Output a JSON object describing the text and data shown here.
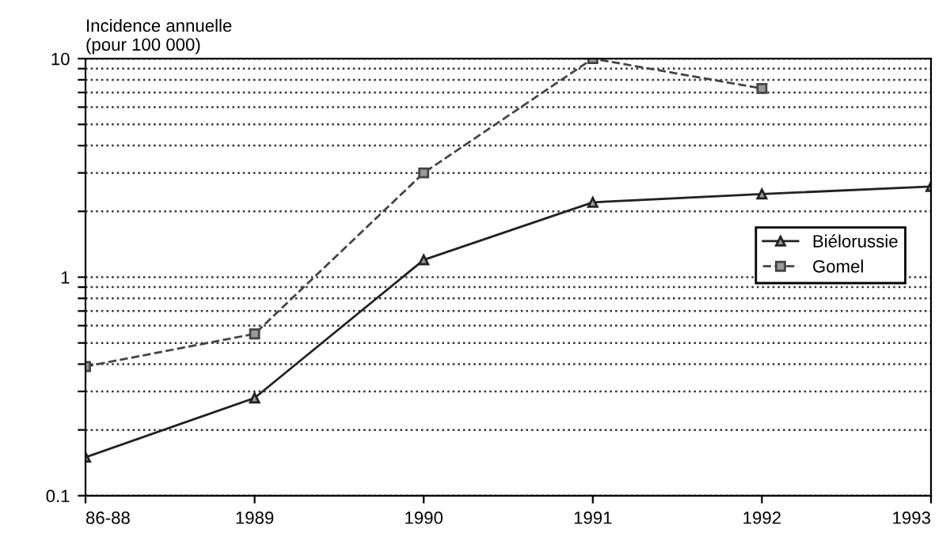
{
  "chart_data": {
    "type": "line",
    "ylabel": "Incidence annuelle\n(pour 100 000)",
    "categories": [
      "86-88",
      "1989",
      "1990",
      "1991",
      "1992",
      "1993"
    ],
    "series": [
      {
        "name": "Biélorussie",
        "color": "#222222",
        "marker": "triangle",
        "line_style": "solid",
        "values": [
          0.15,
          0.28,
          1.2,
          2.2,
          2.4,
          2.6
        ]
      },
      {
        "name": "Gomel",
        "color": "#444444",
        "marker": "square",
        "line_style": "dashed",
        "values": [
          0.39,
          0.55,
          3.0,
          10,
          7.3,
          null
        ]
      }
    ],
    "log": true,
    "ylim": [
      0.1,
      10
    ],
    "yticks": [
      0.1,
      {
        "value": 0.2,
        "label": null
      },
      {
        "value": 0.3,
        "label": null
      },
      {
        "value": 0.4,
        "label": null
      },
      {
        "value": 0.5,
        "label": null
      },
      {
        "value": 0.6,
        "label": null
      },
      {
        "value": 0.7,
        "label": null
      },
      {
        "value": 0.8,
        "label": null
      },
      {
        "value": 0.9,
        "label": null
      },
      1,
      {
        "value": 2,
        "label": null
      },
      {
        "value": 3,
        "label": null
      },
      {
        "value": 4,
        "label": null
      },
      {
        "value": 5,
        "label": null
      },
      {
        "value": 6,
        "label": null
      },
      {
        "value": 7,
        "label": null
      },
      {
        "value": 8,
        "label": null
      },
      {
        "value": 9,
        "label": null
      },
      10
    ],
    "grid": "y",
    "legend": "right"
  }
}
